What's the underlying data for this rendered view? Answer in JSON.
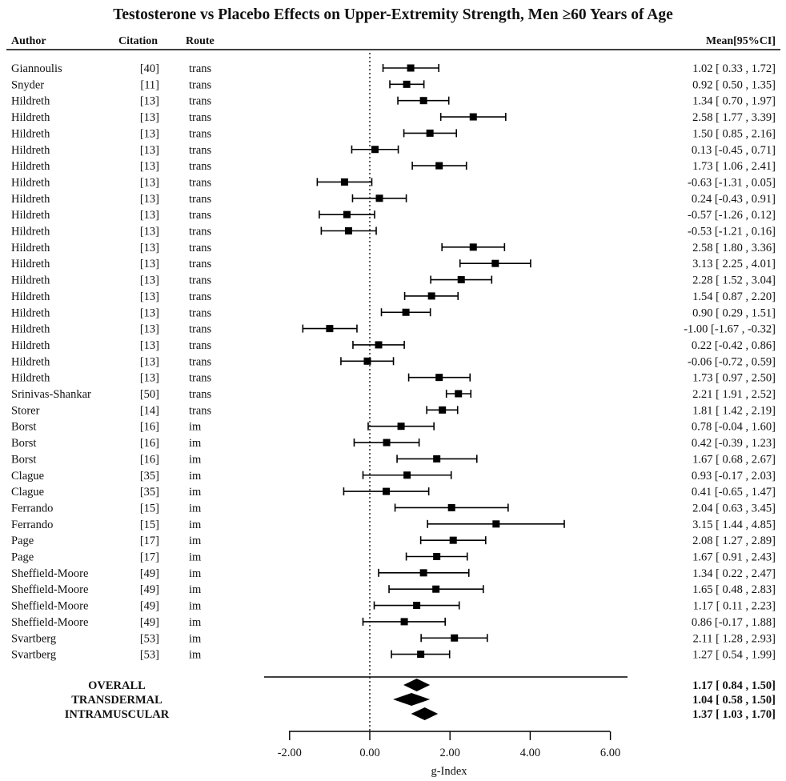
{
  "chart_data": {
    "type": "forest",
    "title": "Testosterone vs Placebo Effects on Upper-Extremity Strength, Men ≥60 Years of Age",
    "columns": {
      "author": "Author",
      "citation": "Citation",
      "route": "Route",
      "estimate": "Mean[95%CI]"
    },
    "xlabel": "g-Index",
    "xlim": [
      -2,
      6
    ],
    "xticks": [
      "-2.00",
      "0.00",
      "2.00",
      "4.00",
      "6.00"
    ],
    "xtick_values": [
      -2,
      0,
      2,
      4,
      6
    ],
    "reference_line": 0,
    "studies": [
      {
        "author": "Giannoulis",
        "citation": "[40]",
        "route": "trans",
        "mean": 1.02,
        "lo": 0.33,
        "hi": 1.72,
        "label": "1.02 [ 0.33 ,  1.72]"
      },
      {
        "author": "Snyder",
        "citation": "[11]",
        "route": "trans",
        "mean": 0.92,
        "lo": 0.5,
        "hi": 1.35,
        "label": "0.92 [ 0.50 ,  1.35]"
      },
      {
        "author": "Hildreth",
        "citation": "[13]",
        "route": "trans",
        "mean": 1.34,
        "lo": 0.7,
        "hi": 1.97,
        "label": "1.34 [ 0.70 ,  1.97]"
      },
      {
        "author": "Hildreth",
        "citation": "[13]",
        "route": "trans",
        "mean": 2.58,
        "lo": 1.77,
        "hi": 3.39,
        "label": "2.58 [ 1.77 ,  3.39]"
      },
      {
        "author": "Hildreth",
        "citation": "[13]",
        "route": "trans",
        "mean": 1.5,
        "lo": 0.85,
        "hi": 2.16,
        "label": "1.50 [ 0.85 ,  2.16]"
      },
      {
        "author": "Hildreth",
        "citation": "[13]",
        "route": "trans",
        "mean": 0.13,
        "lo": -0.45,
        "hi": 0.71,
        "label": "0.13 [-0.45 ,  0.71]"
      },
      {
        "author": "Hildreth",
        "citation": "[13]",
        "route": "trans",
        "mean": 1.73,
        "lo": 1.06,
        "hi": 2.41,
        "label": "1.73 [ 1.06 ,  2.41]"
      },
      {
        "author": "Hildreth",
        "citation": "[13]",
        "route": "trans",
        "mean": -0.63,
        "lo": -1.31,
        "hi": 0.05,
        "label": "-0.63 [-1.31 ,  0.05]"
      },
      {
        "author": "Hildreth",
        "citation": "[13]",
        "route": "trans",
        "mean": 0.24,
        "lo": -0.43,
        "hi": 0.91,
        "label": "0.24 [-0.43 ,  0.91]"
      },
      {
        "author": "Hildreth",
        "citation": "[13]",
        "route": "trans",
        "mean": -0.57,
        "lo": -1.26,
        "hi": 0.12,
        "label": "-0.57 [-1.26 ,  0.12]"
      },
      {
        "author": "Hildreth",
        "citation": "[13]",
        "route": "trans",
        "mean": -0.53,
        "lo": -1.21,
        "hi": 0.16,
        "label": "-0.53 [-1.21 ,  0.16]"
      },
      {
        "author": "Hildreth",
        "citation": "[13]",
        "route": "trans",
        "mean": 2.58,
        "lo": 1.8,
        "hi": 3.36,
        "label": "2.58 [ 1.80 ,  3.36]"
      },
      {
        "author": "Hildreth",
        "citation": "[13]",
        "route": "trans",
        "mean": 3.13,
        "lo": 2.25,
        "hi": 4.01,
        "label": "3.13 [ 2.25 ,  4.01]"
      },
      {
        "author": "Hildreth",
        "citation": "[13]",
        "route": "trans",
        "mean": 2.28,
        "lo": 1.52,
        "hi": 3.04,
        "label": "2.28 [ 1.52 ,  3.04]"
      },
      {
        "author": "Hildreth",
        "citation": "[13]",
        "route": "trans",
        "mean": 1.54,
        "lo": 0.87,
        "hi": 2.2,
        "label": "1.54 [ 0.87 ,  2.20]"
      },
      {
        "author": "Hildreth",
        "citation": "[13]",
        "route": "trans",
        "mean": 0.9,
        "lo": 0.29,
        "hi": 1.51,
        "label": "0.90 [ 0.29 ,  1.51]"
      },
      {
        "author": "Hildreth",
        "citation": "[13]",
        "route": "trans",
        "mean": -1.0,
        "lo": -1.67,
        "hi": -0.32,
        "label": "-1.00 [-1.67 , -0.32]"
      },
      {
        "author": "Hildreth",
        "citation": "[13]",
        "route": "trans",
        "mean": 0.22,
        "lo": -0.42,
        "hi": 0.86,
        "label": "0.22 [-0.42 ,  0.86]"
      },
      {
        "author": "Hildreth",
        "citation": "[13]",
        "route": "trans",
        "mean": -0.06,
        "lo": -0.72,
        "hi": 0.59,
        "label": "-0.06 [-0.72 ,  0.59]"
      },
      {
        "author": "Hildreth",
        "citation": "[13]",
        "route": "trans",
        "mean": 1.73,
        "lo": 0.97,
        "hi": 2.5,
        "label": "1.73 [ 0.97 ,  2.50]"
      },
      {
        "author": "Srinivas-Shankar",
        "citation": "[50]",
        "route": "trans",
        "mean": 2.21,
        "lo": 1.91,
        "hi": 2.52,
        "label": "2.21 [ 1.91 ,  2.52]"
      },
      {
        "author": "Storer",
        "citation": "[14]",
        "route": "trans",
        "mean": 1.81,
        "lo": 1.42,
        "hi": 2.19,
        "label": "1.81 [ 1.42 ,  2.19]"
      },
      {
        "author": "Borst",
        "citation": "[16]",
        "route": "im",
        "mean": 0.78,
        "lo": -0.04,
        "hi": 1.6,
        "label": "0.78 [-0.04 ,  1.60]"
      },
      {
        "author": "Borst",
        "citation": "[16]",
        "route": "im",
        "mean": 0.42,
        "lo": -0.39,
        "hi": 1.23,
        "label": "0.42 [-0.39 ,  1.23]"
      },
      {
        "author": "Borst",
        "citation": "[16]",
        "route": "im",
        "mean": 1.67,
        "lo": 0.68,
        "hi": 2.67,
        "label": "1.67 [ 0.68 ,  2.67]"
      },
      {
        "author": "Clague",
        "citation": "[35]",
        "route": "im",
        "mean": 0.93,
        "lo": -0.17,
        "hi": 2.03,
        "label": "0.93 [-0.17 ,  2.03]"
      },
      {
        "author": "Clague",
        "citation": "[35]",
        "route": "im",
        "mean": 0.41,
        "lo": -0.65,
        "hi": 1.47,
        "label": "0.41 [-0.65 ,  1.47]"
      },
      {
        "author": "Ferrando",
        "citation": "[15]",
        "route": "im",
        "mean": 2.04,
        "lo": 0.63,
        "hi": 3.45,
        "label": "2.04 [ 0.63 ,  3.45]"
      },
      {
        "author": "Ferrando",
        "citation": "[15]",
        "route": "im",
        "mean": 3.15,
        "lo": 1.44,
        "hi": 4.85,
        "label": "3.15 [ 1.44 ,  4.85]"
      },
      {
        "author": "Page",
        "citation": "[17]",
        "route": "im",
        "mean": 2.08,
        "lo": 1.27,
        "hi": 2.89,
        "label": "2.08 [ 1.27 ,  2.89]"
      },
      {
        "author": "Page",
        "citation": "[17]",
        "route": "im",
        "mean": 1.67,
        "lo": 0.91,
        "hi": 2.43,
        "label": "1.67 [ 0.91 ,  2.43]"
      },
      {
        "author": "Sheffield-Moore",
        "citation": "[49]",
        "route": "im",
        "mean": 1.34,
        "lo": 0.22,
        "hi": 2.47,
        "label": "1.34 [ 0.22 ,  2.47]"
      },
      {
        "author": "Sheffield-Moore",
        "citation": "[49]",
        "route": "im",
        "mean": 1.65,
        "lo": 0.48,
        "hi": 2.83,
        "label": "1.65 [ 0.48 ,  2.83]"
      },
      {
        "author": "Sheffield-Moore",
        "citation": "[49]",
        "route": "im",
        "mean": 1.17,
        "lo": 0.11,
        "hi": 2.23,
        "label": "1.17 [ 0.11 ,  2.23]"
      },
      {
        "author": "Sheffield-Moore",
        "citation": "[49]",
        "route": "im",
        "mean": 0.86,
        "lo": -0.17,
        "hi": 1.88,
        "label": "0.86 [-0.17 ,  1.88]"
      },
      {
        "author": "Svartberg",
        "citation": "[53]",
        "route": "im",
        "mean": 2.11,
        "lo": 1.28,
        "hi": 2.93,
        "label": "2.11 [ 1.28 ,  2.93]"
      },
      {
        "author": "Svartberg",
        "citation": "[53]",
        "route": "im",
        "mean": 1.27,
        "lo": 0.54,
        "hi": 1.99,
        "label": "1.27 [ 0.54 ,  1.99]"
      }
    ],
    "summary": [
      {
        "name": "OVERALL",
        "mean": 1.17,
        "lo": 0.84,
        "hi": 1.5,
        "label": "1.17  [ 0.84 ,  1.50]"
      },
      {
        "name": "TRANSDERMAL",
        "mean": 1.04,
        "lo": 0.58,
        "hi": 1.5,
        "label": "1.04  [ 0.58 ,  1.50]"
      },
      {
        "name": "INTRAMUSCULAR",
        "mean": 1.37,
        "lo": 1.03,
        "hi": 1.7,
        "label": "1.37  [ 1.03 ,  1.70]"
      }
    ],
    "colors": {
      "ink": "#000000"
    }
  }
}
